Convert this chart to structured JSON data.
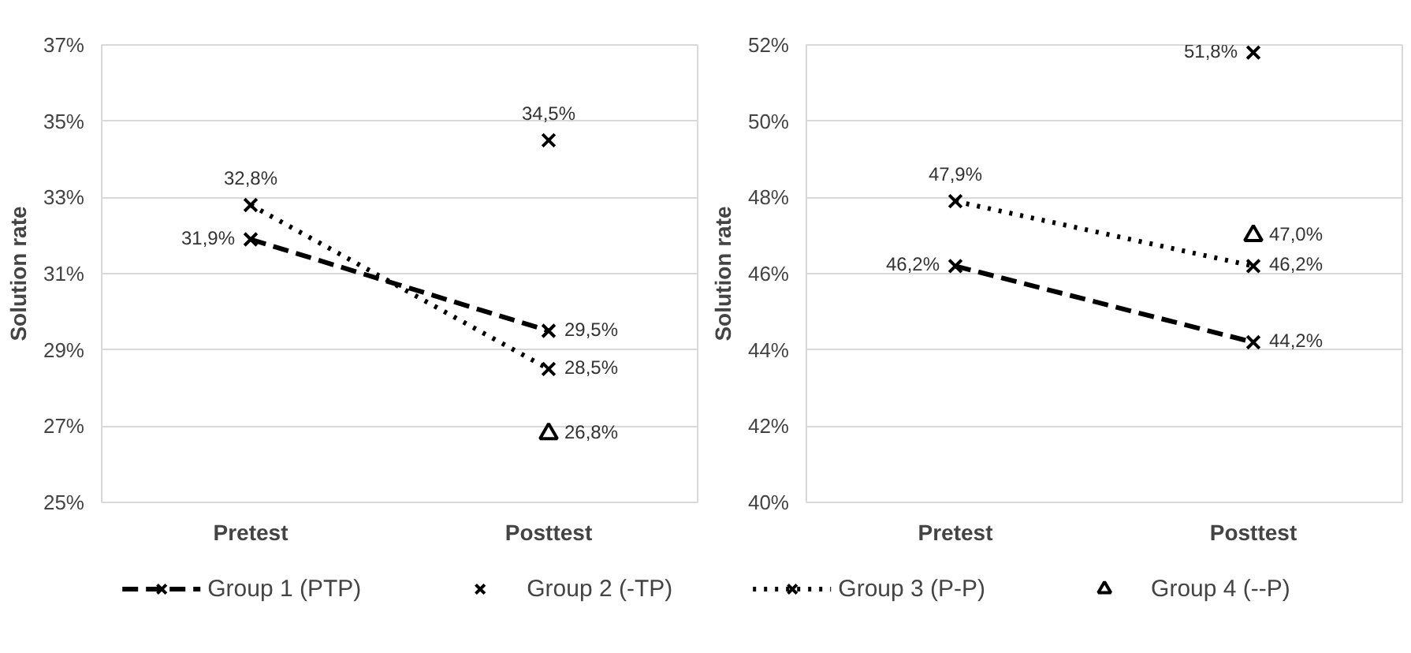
{
  "chart_data": [
    {
      "type": "line",
      "ylabel": "Solution rate",
      "categories": [
        "Pretest",
        "Posttest"
      ],
      "ylim": [
        25,
        37
      ],
      "yticks": [
        {
          "value": 25,
          "label": "25%"
        },
        {
          "value": 27,
          "label": "27%"
        },
        {
          "value": 29,
          "label": "29%"
        },
        {
          "value": 31,
          "label": "31%"
        },
        {
          "value": 33,
          "label": "33%"
        },
        {
          "value": 35,
          "label": "35%"
        },
        {
          "value": 37,
          "label": "37%"
        }
      ],
      "grid": "y",
      "legend": "bottom",
      "series": [
        {
          "name": "Group 1 (PTP)",
          "type": "line",
          "color": "#000000",
          "marker": "cross",
          "line_style": "dashed",
          "values": [
            31.9,
            29.5
          ],
          "value_labels": [
            "31,9%",
            "29,5%"
          ]
        },
        {
          "name": "Group 2 (-TP)",
          "type": "scatter",
          "color": "#000000",
          "marker": "cross",
          "values": [
            null,
            34.5
          ],
          "value_labels": [
            null,
            "34,5%"
          ]
        },
        {
          "name": "Group 3 (P-P)",
          "type": "line",
          "color": "#000000",
          "marker": "cross",
          "line_style": "dotted",
          "values": [
            32.8,
            28.5
          ],
          "value_labels": [
            "32,8%",
            "28,5%"
          ]
        },
        {
          "name": "Group 4 (--P)",
          "type": "scatter",
          "color": "#000000",
          "marker": "triangle",
          "values": [
            null,
            26.8
          ],
          "value_labels": [
            null,
            "26,8%"
          ]
        }
      ]
    },
    {
      "type": "line",
      "ylabel": "Solution rate",
      "categories": [
        "Pretest",
        "Posttest"
      ],
      "ylim": [
        40,
        52
      ],
      "yticks": [
        {
          "value": 40,
          "label": "40%"
        },
        {
          "value": 42,
          "label": "42%"
        },
        {
          "value": 44,
          "label": "44%"
        },
        {
          "value": 46,
          "label": "46%"
        },
        {
          "value": 48,
          "label": "48%"
        },
        {
          "value": 50,
          "label": "50%"
        },
        {
          "value": 52,
          "label": "52%"
        }
      ],
      "grid": "y",
      "legend": "bottom",
      "series": [
        {
          "name": "Group 1 (PTP)",
          "type": "line",
          "color": "#000000",
          "marker": "cross",
          "line_style": "dashed",
          "values": [
            46.2,
            44.2
          ],
          "value_labels": [
            "46,2%",
            "44,2%"
          ]
        },
        {
          "name": "Group 2 (-TP)",
          "type": "scatter",
          "color": "#000000",
          "marker": "cross",
          "values": [
            null,
            51.8
          ],
          "value_labels": [
            null,
            "51,8%"
          ]
        },
        {
          "name": "Group 3 (P-P)",
          "type": "line",
          "color": "#000000",
          "marker": "cross",
          "line_style": "dotted",
          "values": [
            47.9,
            46.2
          ],
          "value_labels": [
            "47,9%",
            "46,2%"
          ]
        },
        {
          "name": "Group 4 (--P)",
          "type": "scatter",
          "color": "#000000",
          "marker": "triangle",
          "values": [
            null,
            47.0
          ],
          "value_labels": [
            null,
            "47,0%"
          ]
        }
      ]
    }
  ]
}
